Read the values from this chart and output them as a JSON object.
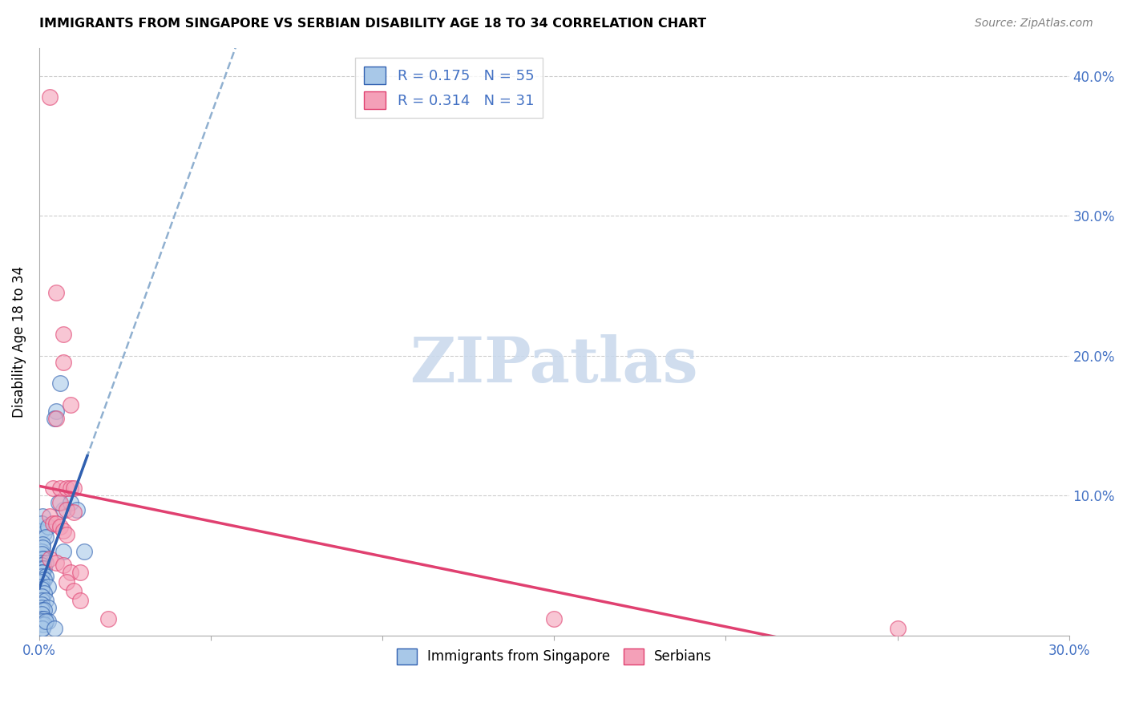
{
  "title": "IMMIGRANTS FROM SINGAPORE VS SERBIAN DISABILITY AGE 18 TO 34 CORRELATION CHART",
  "source": "Source: ZipAtlas.com",
  "ylabel": "Disability Age 18 to 34",
  "xlim": [
    0.0,
    0.3
  ],
  "ylim": [
    0.0,
    0.42
  ],
  "xticks": [
    0.0,
    0.05,
    0.1,
    0.15,
    0.2,
    0.25,
    0.3
  ],
  "yticks": [
    0.0,
    0.1,
    0.2,
    0.3,
    0.4
  ],
  "legend_labels": [
    "Immigrants from Singapore",
    "Serbians"
  ],
  "singapore_R": "0.175",
  "singapore_N": "55",
  "serbian_R": "0.314",
  "serbian_N": "31",
  "singapore_color": "#a8c8e8",
  "serbian_color": "#f4a0b8",
  "singapore_line_color": "#3060b0",
  "serbian_line_color": "#e04070",
  "dashed_line_color": "#90b0d0",
  "watermark_color": "#c8d8ec",
  "singapore_points": [
    [
      0.0008,
      0.075
    ],
    [
      0.0015,
      0.073
    ],
    [
      0.001,
      0.085
    ],
    [
      0.0008,
      0.08
    ],
    [
      0.0025,
      0.078
    ],
    [
      0.0018,
      0.07
    ],
    [
      0.001,
      0.065
    ],
    [
      0.0008,
      0.06
    ],
    [
      0.001,
      0.063
    ],
    [
      0.0008,
      0.058
    ],
    [
      0.0015,
      0.055
    ],
    [
      0.001,
      0.055
    ],
    [
      0.0008,
      0.052
    ],
    [
      0.0018,
      0.052
    ],
    [
      0.0008,
      0.05
    ],
    [
      0.0008,
      0.048
    ],
    [
      0.0015,
      0.048
    ],
    [
      0.0008,
      0.045
    ],
    [
      0.001,
      0.045
    ],
    [
      0.0008,
      0.042
    ],
    [
      0.0018,
      0.042
    ],
    [
      0.0015,
      0.04
    ],
    [
      0.0008,
      0.038
    ],
    [
      0.0008,
      0.035
    ],
    [
      0.0025,
      0.035
    ],
    [
      0.0008,
      0.033
    ],
    [
      0.0015,
      0.03
    ],
    [
      0.0008,
      0.028
    ],
    [
      0.0008,
      0.025
    ],
    [
      0.0018,
      0.025
    ],
    [
      0.0008,
      0.022
    ],
    [
      0.0008,
      0.02
    ],
    [
      0.0025,
      0.02
    ],
    [
      0.0008,
      0.018
    ],
    [
      0.0015,
      0.018
    ],
    [
      0.0008,
      0.015
    ],
    [
      0.0008,
      0.012
    ],
    [
      0.0015,
      0.012
    ],
    [
      0.0008,
      0.01
    ],
    [
      0.0025,
      0.01
    ],
    [
      0.0008,
      0.008
    ],
    [
      0.0015,
      0.008
    ],
    [
      0.0008,
      0.005
    ],
    [
      0.001,
      0.005
    ],
    [
      0.006,
      0.18
    ],
    [
      0.005,
      0.16
    ],
    [
      0.0045,
      0.155
    ],
    [
      0.007,
      0.09
    ],
    [
      0.0055,
      0.095
    ],
    [
      0.009,
      0.095
    ],
    [
      0.011,
      0.09
    ],
    [
      0.007,
      0.06
    ],
    [
      0.013,
      0.06
    ],
    [
      0.0018,
      0.01
    ],
    [
      0.0045,
      0.005
    ]
  ],
  "serbian_points": [
    [
      0.003,
      0.385
    ],
    [
      0.005,
      0.245
    ],
    [
      0.007,
      0.215
    ],
    [
      0.007,
      0.195
    ],
    [
      0.009,
      0.165
    ],
    [
      0.005,
      0.155
    ],
    [
      0.004,
      0.105
    ],
    [
      0.006,
      0.105
    ],
    [
      0.008,
      0.105
    ],
    [
      0.009,
      0.105
    ],
    [
      0.01,
      0.105
    ],
    [
      0.006,
      0.095
    ],
    [
      0.008,
      0.09
    ],
    [
      0.01,
      0.088
    ],
    [
      0.003,
      0.085
    ],
    [
      0.004,
      0.08
    ],
    [
      0.005,
      0.08
    ],
    [
      0.006,
      0.078
    ],
    [
      0.007,
      0.075
    ],
    [
      0.008,
      0.072
    ],
    [
      0.003,
      0.055
    ],
    [
      0.005,
      0.052
    ],
    [
      0.007,
      0.05
    ],
    [
      0.009,
      0.045
    ],
    [
      0.012,
      0.045
    ],
    [
      0.008,
      0.038
    ],
    [
      0.01,
      0.032
    ],
    [
      0.012,
      0.025
    ],
    [
      0.02,
      0.012
    ],
    [
      0.15,
      0.012
    ],
    [
      0.25,
      0.005
    ]
  ],
  "sg_line_x": [
    0.0,
    0.014
  ],
  "sr_line_x": [
    0.0,
    0.3
  ],
  "dashed_line_x": [
    0.0,
    0.3
  ]
}
